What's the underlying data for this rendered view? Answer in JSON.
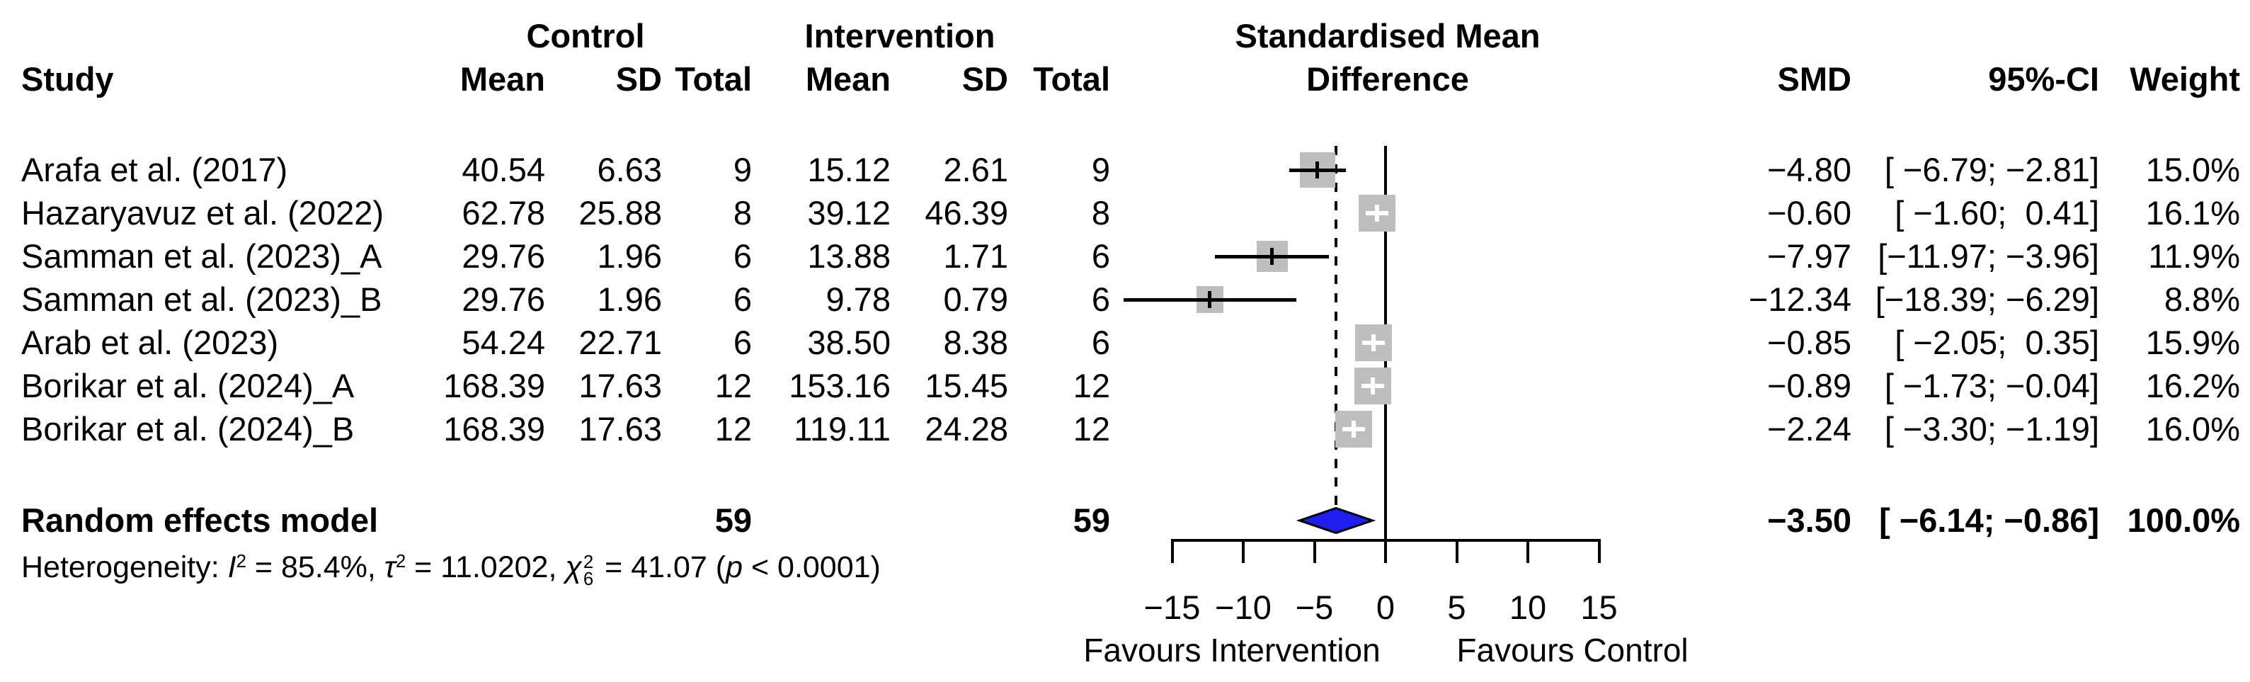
{
  "header": {
    "control_group": "Control",
    "intervention_group": "Intervention",
    "effect_title_line1": "Standardised Mean",
    "effect_title_line2": "Difference",
    "study": "Study",
    "c_mean": "Mean",
    "c_sd": "SD",
    "c_total": "Total",
    "i_mean": "Mean",
    "i_sd": "SD",
    "i_total": "Total",
    "smd": "SMD",
    "ci": "95%-CI",
    "weight": "Weight"
  },
  "rows": [
    {
      "study": "Arafa et al. (2017)",
      "c_mean": "40.54",
      "c_sd": "6.63",
      "c_total": "9",
      "i_mean": "15.12",
      "i_sd": "2.61",
      "i_total": "9",
      "smd": "−4.80",
      "ci": "[ −6.79; −2.81]",
      "weight": "15.0%"
    },
    {
      "study": "Hazaryavuz et al. (2022)",
      "c_mean": "62.78",
      "c_sd": "25.88",
      "c_total": "8",
      "i_mean": "39.12",
      "i_sd": "46.39",
      "i_total": "8",
      "smd": "−0.60",
      "ci": "[ −1.60;  0.41]",
      "weight": "16.1%"
    },
    {
      "study": "Samman et al. (2023)_A",
      "c_mean": "29.76",
      "c_sd": "1.96",
      "c_total": "6",
      "i_mean": "13.88",
      "i_sd": "1.71",
      "i_total": "6",
      "smd": "−7.97",
      "ci": "[−11.97; −3.96]",
      "weight": "11.9%"
    },
    {
      "study": "Samman et al. (2023)_B",
      "c_mean": "29.76",
      "c_sd": "1.96",
      "c_total": "6",
      "i_mean": "9.78",
      "i_sd": "0.79",
      "i_total": "6",
      "smd": "−12.34",
      "ci": "[−18.39; −6.29]",
      "weight": "8.8%"
    },
    {
      "study": "Arab et al. (2023)",
      "c_mean": "54.24",
      "c_sd": "22.71",
      "c_total": "6",
      "i_mean": "38.50",
      "i_sd": "8.38",
      "i_total": "6",
      "smd": "−0.85",
      "ci": "[ −2.05;  0.35]",
      "weight": "15.9%"
    },
    {
      "study": "Borikar et al. (2024)_A",
      "c_mean": "168.39",
      "c_sd": "17.63",
      "c_total": "12",
      "i_mean": "153.16",
      "i_sd": "15.45",
      "i_total": "12",
      "smd": "−0.89",
      "ci": "[ −1.73; −0.04]",
      "weight": "16.2%"
    },
    {
      "study": "Borikar et al. (2024)_B",
      "c_mean": "168.39",
      "c_sd": "17.63",
      "c_total": "12",
      "i_mean": "119.11",
      "i_sd": "24.28",
      "i_total": "12",
      "smd": "−2.24",
      "ci": "[ −3.30; −1.19]",
      "weight": "16.0%"
    }
  ],
  "summary_row": {
    "label": "Random effects model",
    "c_total": "59",
    "i_total": "59",
    "smd": "−3.50",
    "ci": "[ −6.14; −0.86]",
    "weight": "100.0%"
  },
  "het": {
    "prefix": "Heterogeneity: ",
    "I": "I",
    "I_sup": "2",
    "seg1": " = 85.4%, ",
    "tau": "τ",
    "tau_sup": "2",
    "seg2": " = 11.0202, ",
    "chi": "χ",
    "chi_sup": "2",
    "chi_sub": "6",
    "seg3": " = 41.07 (",
    "p": "p",
    "seg4": " < 0.0001)"
  },
  "axis": {
    "tick_labels": [
      "−15",
      "−10",
      "−5",
      "0",
      "5",
      "10",
      "15"
    ],
    "favours_left": "Favours Intervention",
    "favours_right": "Favours Control"
  },
  "chart_data": {
    "type": "forest",
    "effect_measure": "SMD",
    "model_label": "Random effects model",
    "studies": [
      {
        "name": "Arafa et al. (2017)",
        "control": {
          "mean": 40.54,
          "sd": 6.63,
          "total": 9
        },
        "intervention": {
          "mean": 15.12,
          "sd": 2.61,
          "total": 9
        },
        "smd": -4.8,
        "ci_low": -6.79,
        "ci_high": -2.81,
        "weight_pct": 15.0
      },
      {
        "name": "Hazaryavuz et al. (2022)",
        "control": {
          "mean": 62.78,
          "sd": 25.88,
          "total": 8
        },
        "intervention": {
          "mean": 39.12,
          "sd": 46.39,
          "total": 8
        },
        "smd": -0.6,
        "ci_low": -1.6,
        "ci_high": 0.41,
        "weight_pct": 16.1
      },
      {
        "name": "Samman et al. (2023)_A",
        "control": {
          "mean": 29.76,
          "sd": 1.96,
          "total": 6
        },
        "intervention": {
          "mean": 13.88,
          "sd": 1.71,
          "total": 6
        },
        "smd": -7.97,
        "ci_low": -11.97,
        "ci_high": -3.96,
        "weight_pct": 11.9
      },
      {
        "name": "Samman et al. (2023)_B",
        "control": {
          "mean": 29.76,
          "sd": 1.96,
          "total": 6
        },
        "intervention": {
          "mean": 9.78,
          "sd": 0.79,
          "total": 6
        },
        "smd": -12.34,
        "ci_low": -18.39,
        "ci_high": -6.29,
        "weight_pct": 8.8
      },
      {
        "name": "Arab et al. (2023)",
        "control": {
          "mean": 54.24,
          "sd": 22.71,
          "total": 6
        },
        "intervention": {
          "mean": 38.5,
          "sd": 8.38,
          "total": 6
        },
        "smd": -0.85,
        "ci_low": -2.05,
        "ci_high": 0.35,
        "weight_pct": 15.9
      },
      {
        "name": "Borikar et al. (2024)_A",
        "control": {
          "mean": 168.39,
          "sd": 17.63,
          "total": 12
        },
        "intervention": {
          "mean": 153.16,
          "sd": 15.45,
          "total": 12
        },
        "smd": -0.89,
        "ci_low": -1.73,
        "ci_high": -0.04,
        "weight_pct": 16.2
      },
      {
        "name": "Borikar et al. (2024)_B",
        "control": {
          "mean": 168.39,
          "sd": 17.63,
          "total": 12
        },
        "intervention": {
          "mean": 119.11,
          "sd": 24.28,
          "total": 12
        },
        "smd": -2.24,
        "ci_low": -3.3,
        "ci_high": -1.19,
        "weight_pct": 16.0
      }
    ],
    "summary": {
      "smd": -3.5,
      "ci_low": -6.14,
      "ci_high": -0.86,
      "weight_pct": 100.0,
      "control_total": 59,
      "intervention_total": 59
    },
    "heterogeneity": {
      "I2_pct": 85.4,
      "tau2": 11.0202,
      "chi2": 41.07,
      "df": 6,
      "p": "< 0.0001"
    },
    "xaxis": {
      "ticks": [
        -15,
        -10,
        -5,
        0,
        5,
        10,
        15
      ],
      "reference_value": 0,
      "summary_line_value": -3.5,
      "label_left": "Favours Intervention",
      "label_right": "Favours Control"
    },
    "colors": {
      "square": "#bebebe",
      "diamond_fill": "#1e1ef0",
      "diamond_border": "#000000",
      "line": "#000000"
    }
  }
}
